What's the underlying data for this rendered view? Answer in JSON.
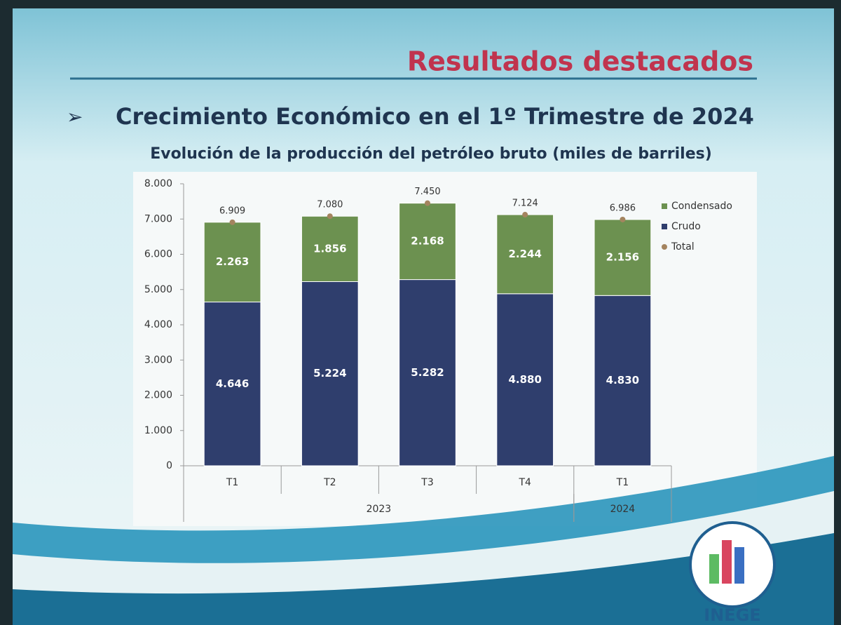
{
  "slide": {
    "title": "Resultados destacados",
    "heading": "Crecimiento Económico en el 1º Trimestre de 2024"
  },
  "chart_data": {
    "type": "bar",
    "stacked": true,
    "title": "Evolución de la producción del petróleo bruto (miles de barriles)",
    "categories": [
      "T1",
      "T2",
      "T3",
      "T4",
      "T1"
    ],
    "x_groups": [
      {
        "label": "2023",
        "count": 4
      },
      {
        "label": "2024",
        "count": 1
      }
    ],
    "series": [
      {
        "name": "Crudo",
        "type": "bar",
        "color": "#2f3e6d",
        "values": [
          4646,
          5224,
          5282,
          4880,
          4830
        ],
        "value_labels": [
          "4.646",
          "5.224",
          "5.282",
          "4.880",
          "4.830"
        ]
      },
      {
        "name": "Condensado",
        "type": "bar",
        "color": "#6c9150",
        "values": [
          2263,
          1856,
          2168,
          2244,
          2156
        ],
        "value_labels": [
          "2.263",
          "1.856",
          "2.168",
          "2.244",
          "2.156"
        ]
      },
      {
        "name": "Total",
        "type": "point",
        "color": "#a4845f",
        "values": [
          6909,
          7080,
          7450,
          7124,
          6986
        ],
        "value_labels": [
          "6.909",
          "7.080",
          "7.450",
          "7.124",
          "6.986"
        ]
      }
    ],
    "ylim": [
      0,
      8000
    ],
    "yticks": [
      0,
      {
        "value": 1000,
        "label": "1.000"
      },
      {
        "value": 2000,
        "label": "2.000"
      },
      {
        "value": 3000,
        "label": "3.000"
      },
      {
        "value": 4000,
        "label": "4.000"
      },
      {
        "value": 5000,
        "label": "5.000"
      },
      {
        "value": 6000,
        "label": "6.000"
      },
      {
        "value": 7000,
        "label": "7.000"
      },
      {
        "value": 8000,
        "label": "8.000"
      }
    ],
    "legend": "right"
  },
  "logo": {
    "text": "INEGE"
  }
}
